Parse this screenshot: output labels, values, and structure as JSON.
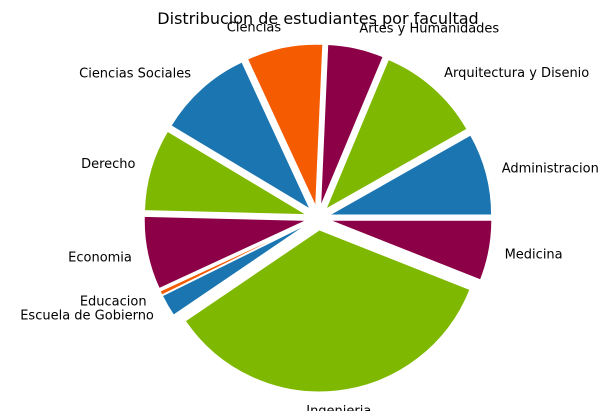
{
  "chart_data": {
    "type": "pie",
    "title": "Distribucion de estudiantes por facultad",
    "start_angle_deg": 0,
    "direction": "counterclockwise",
    "slices": [
      {
        "label": "Administracion",
        "value": 8.2,
        "color": "#1a75b0",
        "explode": true
      },
      {
        "label": "Arquitectura y Disenio",
        "value": 10.5,
        "color": "#7fb800",
        "explode": true
      },
      {
        "label": "Artes y Humanidades",
        "value": 5.6,
        "color": "#8b0046",
        "explode": true
      },
      {
        "label": "Ciencias",
        "value": 7.6,
        "color": "#f55b00",
        "explode": true
      },
      {
        "label": "Ciencias Sociales",
        "value": 9.5,
        "color": "#1a75b0",
        "explode": true
      },
      {
        "label": "Derecho",
        "value": 8.2,
        "color": "#7fb800",
        "explode": true
      },
      {
        "label": "Economia",
        "value": 7.3,
        "color": "#8b0046",
        "explode": true
      },
      {
        "label": "Educacion",
        "value": 0.4,
        "color": "#f55b00",
        "explode": true
      },
      {
        "label": "Escuela de Gobierno",
        "value": 2.2,
        "color": "#1a75b0",
        "explode": true
      },
      {
        "label": "Ingenieria",
        "value": 34.5,
        "color": "#7fb800",
        "explode": true
      },
      {
        "label": "Medicina",
        "value": 6.0,
        "color": "#8b0046",
        "explode": true
      }
    ]
  }
}
